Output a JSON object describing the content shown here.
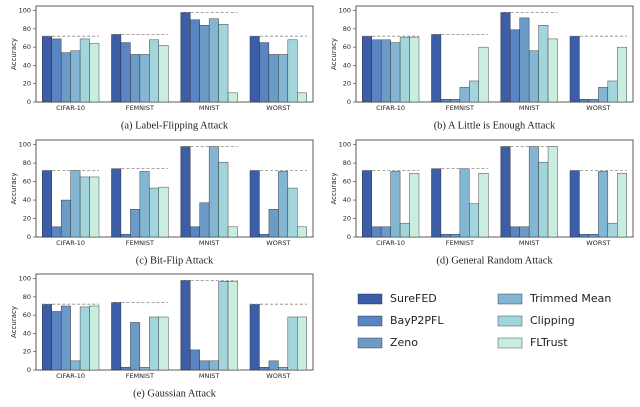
{
  "chart_data": [
    {
      "type": "bar",
      "title": "(a) Label-Flipping Attack",
      "y_label": "Accuracy",
      "categories": [
        "CIFAR-10",
        "FEMNIST",
        "MNIST",
        "WORST"
      ],
      "series": [
        {
          "values": [
            72,
            74,
            98,
            72
          ]
        },
        {
          "values": [
            69,
            65,
            90,
            65
          ]
        },
        {
          "values": [
            54,
            52,
            84,
            52
          ]
        },
        {
          "values": [
            56,
            52,
            91,
            52
          ]
        },
        {
          "values": [
            69,
            68,
            85,
            68
          ]
        },
        {
          "values": [
            64,
            62,
            10,
            10
          ]
        }
      ],
      "ylim": [
        0,
        105
      ],
      "yticks": [
        0,
        20,
        40,
        60,
        80,
        100
      ]
    },
    {
      "type": "bar",
      "title": "(b) A Little is Enough Attack",
      "y_label": "Accuracy",
      "categories": [
        "CIFAR-10",
        "FEMNIST",
        "MNIST",
        "WORST"
      ],
      "series": [
        {
          "values": [
            72,
            74,
            98,
            72
          ]
        },
        {
          "values": [
            68,
            3,
            79,
            3
          ]
        },
        {
          "values": [
            68,
            3,
            92,
            3
          ]
        },
        {
          "values": [
            65,
            16,
            56,
            16
          ]
        },
        {
          "values": [
            71,
            23,
            84,
            23
          ]
        },
        {
          "values": [
            71,
            60,
            69,
            60
          ]
        }
      ],
      "ylim": [
        0,
        105
      ],
      "yticks": [
        0,
        20,
        40,
        60,
        80,
        100
      ]
    },
    {
      "type": "bar",
      "title": "(c) Bit-Flip Attack",
      "y_label": "Accuracy",
      "categories": [
        "CIFAR-10",
        "FEMNIST",
        "MNIST",
        "WORST"
      ],
      "series": [
        {
          "values": [
            72,
            74,
            98,
            72
          ]
        },
        {
          "values": [
            11,
            3,
            11,
            3
          ]
        },
        {
          "values": [
            40,
            30,
            37,
            30
          ]
        },
        {
          "values": [
            72,
            71,
            98,
            71
          ]
        },
        {
          "values": [
            65,
            53,
            81,
            53
          ]
        },
        {
          "values": [
            65,
            54,
            11,
            11
          ]
        }
      ],
      "ylim": [
        0,
        105
      ],
      "yticks": [
        0,
        20,
        40,
        60,
        80,
        100
      ]
    },
    {
      "type": "bar",
      "title": "(d) General Random Attack",
      "y_label": "Accuracy",
      "categories": [
        "CIFAR-10",
        "FEMNIST",
        "MNIST",
        "WORST"
      ],
      "series": [
        {
          "values": [
            72,
            74,
            98,
            72
          ]
        },
        {
          "values": [
            11,
            3,
            11,
            3
          ]
        },
        {
          "values": [
            11,
            3,
            11,
            3
          ]
        },
        {
          "values": [
            71,
            74,
            98,
            71
          ]
        },
        {
          "values": [
            15,
            36,
            81,
            15
          ]
        },
        {
          "values": [
            69,
            69,
            98,
            69
          ]
        }
      ],
      "ylim": [
        0,
        105
      ],
      "yticks": [
        0,
        20,
        40,
        60,
        80,
        100
      ]
    },
    {
      "type": "bar",
      "title": "(e) Gaussian Attack",
      "y_label": "Accuracy",
      "categories": [
        "CIFAR-10",
        "FEMNIST",
        "MNIST",
        "WORST"
      ],
      "series": [
        {
          "values": [
            72,
            74,
            98,
            72
          ]
        },
        {
          "values": [
            64,
            3,
            22,
            3
          ]
        },
        {
          "values": [
            70,
            52,
            10,
            10
          ]
        },
        {
          "values": [
            10,
            3,
            10,
            3
          ]
        },
        {
          "values": [
            69,
            58,
            97,
            58
          ]
        },
        {
          "values": [
            70,
            58,
            97,
            58
          ]
        }
      ],
      "ylim": [
        0,
        105
      ],
      "yticks": [
        0,
        20,
        40,
        60,
        80,
        100
      ]
    }
  ],
  "legend": [
    {
      "name": "SureFED",
      "color": "#3b5ea6"
    },
    {
      "name": "BayP2PFL",
      "color": "#5b84c2"
    },
    {
      "name": "Zeno",
      "color": "#6d9bc8"
    },
    {
      "name": "Trimmed Mean",
      "color": "#82b6d2"
    },
    {
      "name": "Clipping",
      "color": "#a3d6dc"
    },
    {
      "name": "FLTrust",
      "color": "#c9eddf"
    }
  ]
}
